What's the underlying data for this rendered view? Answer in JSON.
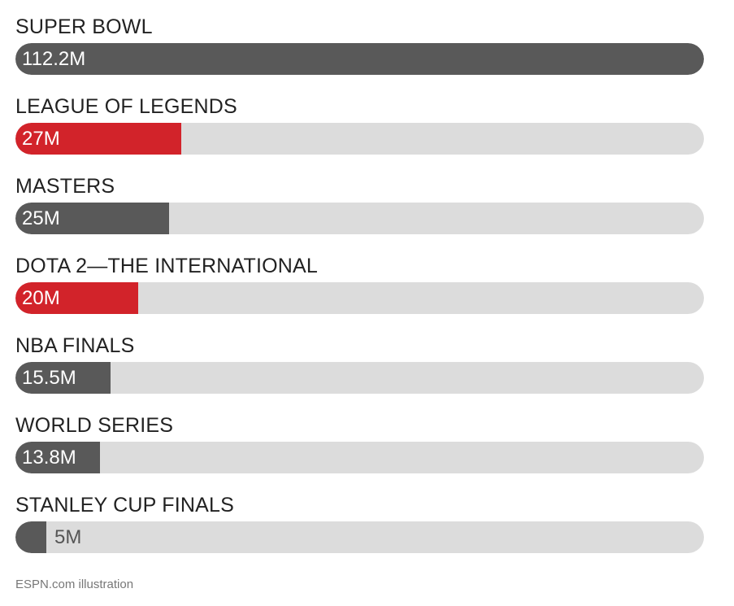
{
  "colors": {
    "gray": "#595959",
    "red": "#d2232a",
    "track": "#dcdcdc"
  },
  "chart_data": {
    "type": "bar",
    "orientation": "horizontal",
    "categories": [
      "SUPER BOWL",
      "LEAGUE OF LEGENDS",
      "MASTERS",
      "DOTA 2—THE INTERNATIONAL",
      "NBA FINALS",
      "WORLD SERIES",
      "STANLEY CUP FINALS"
    ],
    "values": [
      112.2,
      27,
      25,
      20,
      15.5,
      13.8,
      5
    ],
    "value_labels": [
      "112.2M",
      "27M",
      "25M",
      "20M",
      "15.5M",
      "13.8M",
      "5M"
    ],
    "bar_colors": [
      "gray",
      "red",
      "gray",
      "red",
      "gray",
      "gray",
      "gray"
    ],
    "xlim": [
      0,
      112.2
    ],
    "grid": false,
    "title": "",
    "xlabel": "",
    "ylabel": ""
  },
  "credit": "ESPN.com illustration"
}
